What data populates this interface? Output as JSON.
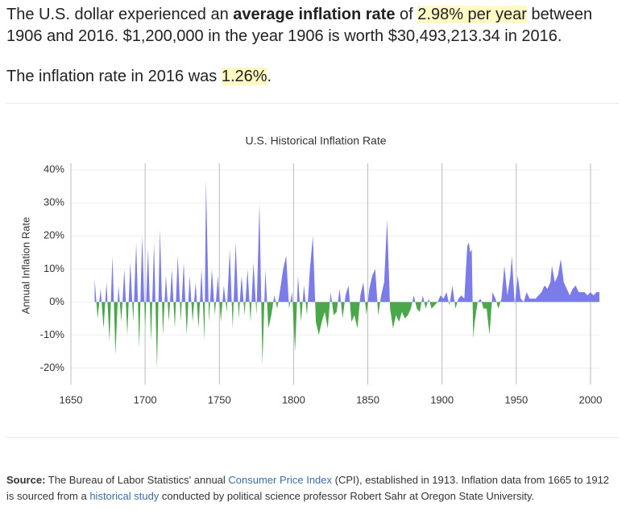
{
  "intro": {
    "lead": "The U.S. dollar experienced an ",
    "bold": "average inflation rate",
    "mid": " of ",
    "highlight": "2.98% per year",
    "tail": " between 1906 and 2016. $1,200,000 in the year 1906 is worth $30,493,213.34 in 2016."
  },
  "current": {
    "lead": "The inflation rate in 2016 was ",
    "highlight": "1.26%",
    "tail": "."
  },
  "chart_data": {
    "type": "area",
    "title": "U.S. Historical Inflation Rate",
    "y_label": "Annual Inflation Rate",
    "positive_color": "#7b7bea",
    "negative_color": "#4aa84a",
    "grid": true,
    "xlim": [
      1650,
      2006
    ],
    "xticks": [
      1650,
      1700,
      1750,
      1800,
      1850,
      1900,
      1950,
      2000
    ],
    "ylim": [
      -25,
      42
    ],
    "yticks": [
      {
        "value": -20,
        "label": "-20%"
      },
      {
        "value": -10,
        "label": "-10%"
      },
      {
        "value": 0,
        "label": "0%"
      },
      {
        "value": 10,
        "label": "10%"
      },
      {
        "value": 20,
        "label": "20%"
      },
      {
        "value": 30,
        "label": "30%"
      },
      {
        "value": 40,
        "label": "40%"
      }
    ],
    "series": [
      {
        "name": "Annual Inflation Rate",
        "x": [
          1666,
          1668,
          1670,
          1672,
          1674,
          1676,
          1678,
          1680,
          1682,
          1684,
          1686,
          1688,
          1690,
          1692,
          1694,
          1696,
          1698,
          1700,
          1702,
          1704,
          1706,
          1708,
          1710,
          1712,
          1714,
          1716,
          1718,
          1720,
          1722,
          1724,
          1726,
          1728,
          1730,
          1732,
          1734,
          1736,
          1738,
          1740,
          1741,
          1743,
          1745,
          1747,
          1749,
          1751,
          1753,
          1755,
          1757,
          1759,
          1761,
          1763,
          1765,
          1767,
          1769,
          1771,
          1773,
          1775,
          1777,
          1779,
          1781,
          1783,
          1785,
          1787,
          1789,
          1791,
          1793,
          1795,
          1797,
          1799,
          1801,
          1803,
          1805,
          1807,
          1809,
          1811,
          1813,
          1815,
          1817,
          1819,
          1821,
          1823,
          1825,
          1827,
          1829,
          1831,
          1833,
          1835,
          1837,
          1839,
          1841,
          1843,
          1845,
          1847,
          1849,
          1851,
          1853,
          1855,
          1857,
          1859,
          1861,
          1863,
          1865,
          1867,
          1869,
          1871,
          1873,
          1875,
          1877,
          1879,
          1881,
          1883,
          1885,
          1887,
          1889,
          1891,
          1893,
          1895,
          1897,
          1899,
          1901,
          1903,
          1905,
          1907,
          1909,
          1911,
          1913,
          1915,
          1917,
          1918,
          1919,
          1920,
          1921,
          1922,
          1924,
          1926,
          1928,
          1930,
          1932,
          1934,
          1936,
          1938,
          1940,
          1942,
          1944,
          1946,
          1947,
          1949,
          1951,
          1953,
          1955,
          1957,
          1959,
          1961,
          1963,
          1965,
          1967,
          1969,
          1971,
          1973,
          1974,
          1976,
          1978,
          1980,
          1982,
          1984,
          1986,
          1988,
          1990,
          1992,
          1994,
          1996,
          1998,
          2000,
          2002,
          2004,
          2006
        ],
        "values": [
          7,
          -5,
          4,
          -8,
          6,
          -12,
          14,
          -16,
          5,
          -6,
          10,
          -10,
          12,
          -6,
          18,
          -14,
          20,
          -8,
          16,
          -12,
          18,
          -20,
          22,
          -10,
          8,
          -6,
          10,
          -8,
          14,
          -6,
          12,
          -10,
          8,
          -6,
          6,
          -8,
          10,
          -12,
          37,
          -6,
          10,
          -4,
          8,
          -6,
          5,
          -3,
          16,
          -8,
          18,
          -5,
          8,
          -4,
          10,
          -6,
          12,
          -4,
          30,
          -19,
          10,
          -8,
          -4,
          2,
          -2,
          4,
          10,
          14,
          -2,
          3,
          -15,
          8,
          -6,
          5,
          -4,
          10,
          20,
          -6,
          -10,
          -6,
          -3,
          -8,
          3,
          -4,
          -3,
          4,
          -5,
          2,
          5,
          -6,
          -4,
          -8,
          2,
          6,
          -4,
          4,
          8,
          10,
          -4,
          2,
          6,
          25,
          -2,
          -8,
          -4,
          -6,
          -3,
          -5,
          -4,
          -2,
          2,
          -2,
          -3,
          2,
          -2,
          1,
          -2,
          -1,
          0,
          2,
          1,
          3,
          -1,
          5,
          -2,
          1,
          2,
          1,
          17,
          18,
          15,
          16,
          -11,
          -6,
          0,
          1,
          -2,
          -2,
          -10,
          3,
          1,
          -2,
          1,
          11,
          2,
          8,
          14,
          -1,
          8,
          1,
          0,
          3,
          1,
          1,
          1,
          2,
          3,
          5,
          4,
          6,
          11,
          6,
          8,
          13,
          6,
          4,
          2,
          4,
          5,
          3,
          3,
          3,
          2,
          3,
          2,
          3,
          3
        ]
      }
    ]
  },
  "source": {
    "label": "Source:",
    "t1": " The Bureau of Labor Statistics' annual ",
    "link1": "Consumer Price Index",
    "t2": " (CPI), established in 1913. Inflation data from 1665 to 1912 is sourced from a ",
    "link2": "historical study",
    "t3": " conducted by political science professor Robert Sahr at Oregon State University."
  }
}
